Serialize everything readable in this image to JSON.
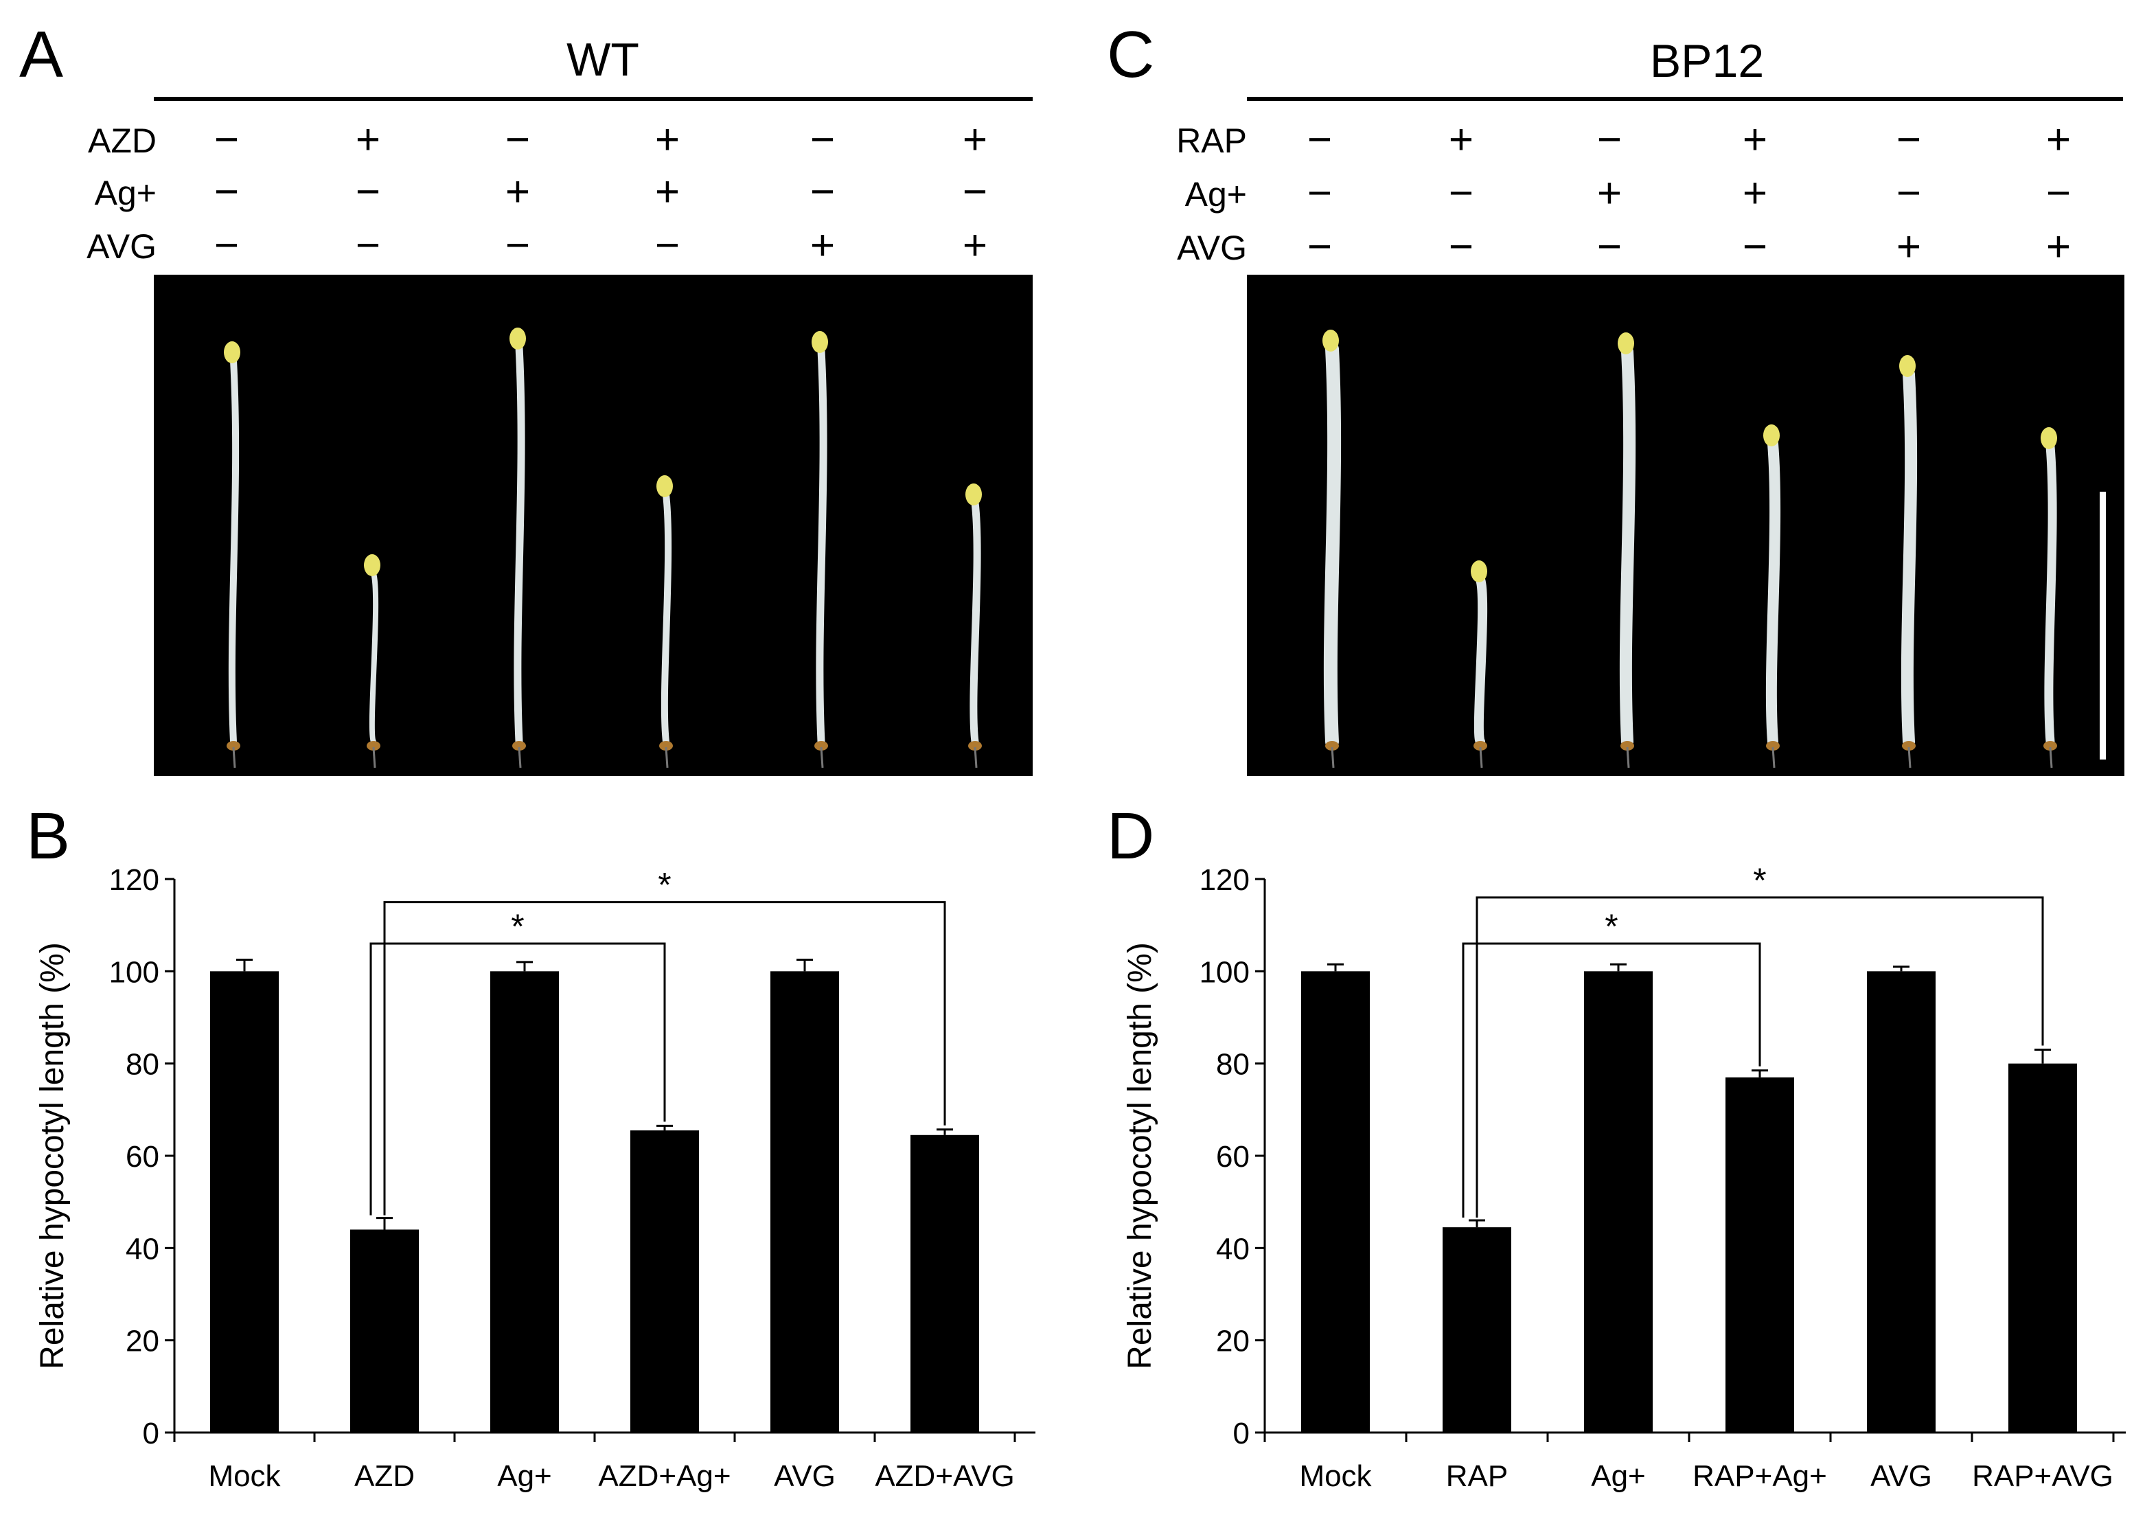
{
  "colors": {
    "bar": "#000000",
    "photo_bg": "#000000",
    "seedling": "#dfe6e6",
    "cotyledon": "#e8e26a",
    "scale_bar": "#ffffff"
  },
  "panels": {
    "A": {
      "letter": "A",
      "title": "WT",
      "rows": [
        {
          "label": "AZD",
          "signs": [
            "−",
            "+",
            "−",
            "+",
            "−",
            "+"
          ]
        },
        {
          "label": "Ag+",
          "signs": [
            "−",
            "−",
            "+",
            "+",
            "−",
            "−"
          ]
        },
        {
          "label": "AVG",
          "signs": [
            "−",
            "−",
            "−",
            "−",
            "+",
            "+"
          ]
        }
      ]
    },
    "C": {
      "letter": "C",
      "title": "BP12",
      "rows": [
        {
          "label": "RAP",
          "signs": [
            "−",
            "+",
            "−",
            "+",
            "−",
            "+"
          ]
        },
        {
          "label": "Ag+",
          "signs": [
            "−",
            "−",
            "+",
            "+",
            "−",
            "−"
          ]
        },
        {
          "label": "AVG",
          "signs": [
            "−",
            "−",
            "−",
            "−",
            "+",
            "+"
          ]
        }
      ]
    }
  },
  "chart_data": [
    {
      "panel": "B",
      "type": "bar",
      "categories": [
        "Mock",
        "AZD",
        "Ag+",
        "AZD+Ag+",
        "AVG",
        "AZD+AVG"
      ],
      "values": [
        100,
        44,
        100,
        65.5,
        100,
        64.5
      ],
      "errors": [
        2.5,
        2.5,
        2,
        1,
        2.5,
        1.2
      ],
      "ylabel": "Relative hypocotyl length (%)",
      "ylim": [
        0,
        120
      ],
      "yticks": [
        0,
        20,
        40,
        60,
        80,
        100,
        120
      ],
      "brackets": [
        {
          "from": 1,
          "to": 3,
          "level": 106,
          "label": "*"
        },
        {
          "from": 1,
          "to": 5,
          "level": 115,
          "label": "*"
        }
      ]
    },
    {
      "panel": "D",
      "type": "bar",
      "categories": [
        "Mock",
        "RAP",
        "Ag+",
        "RAP+Ag+",
        "AVG",
        "RAP+AVG"
      ],
      "values": [
        100,
        44.5,
        100,
        77,
        100,
        80
      ],
      "errors": [
        1.5,
        1.5,
        1.5,
        1.5,
        1,
        3
      ],
      "ylabel": "Relative hypocotyl length (%)",
      "ylim": [
        0,
        120
      ],
      "yticks": [
        0,
        20,
        40,
        60,
        80,
        100,
        120
      ],
      "brackets": [
        {
          "from": 1,
          "to": 3,
          "level": 106,
          "label": "*"
        },
        {
          "from": 1,
          "to": 5,
          "level": 116,
          "label": "*"
        }
      ]
    }
  ]
}
